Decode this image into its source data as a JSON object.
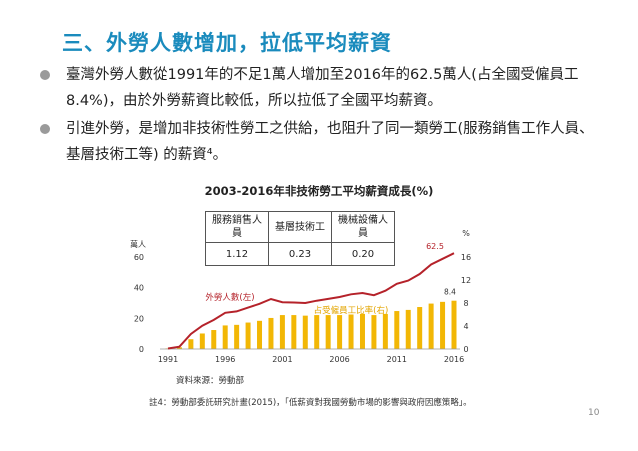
{
  "slide": {
    "title": "三、外勞人數增加，拉低平均薪資",
    "bullets": [
      "臺灣外勞人數從1991年的不足1萬人增加至2016年的62.5萬人(占全國受僱員工8.4%)，由於外勞薪資比較低，所以拉低了全國平均薪資。",
      "引進外勞，是增加非技術性勞工之供給，也阻升了同一類勞工(服務銷售工作人員、基層技術工等) 的薪資⁴。"
    ],
    "source": "資料來源：勞動部",
    "footnote": "註4：勞動部委託研究計畫(2015)，「低薪資對我國勞動市場的影響與政府因應策略」。",
    "page_number": "10"
  },
  "wage_table": {
    "headers": [
      "服務銷售人員",
      "基層技術工",
      "機械設備人員"
    ],
    "values": [
      "1.12",
      "0.23",
      "0.20"
    ]
  },
  "chart_data": {
    "type": "bar+line",
    "title": "2003-2016年非技術勞工平均薪資成長(%)",
    "x": [
      1991,
      1992,
      1993,
      1994,
      1995,
      1996,
      1997,
      1998,
      1999,
      2000,
      2001,
      2002,
      2003,
      2004,
      2005,
      2006,
      2007,
      2008,
      2009,
      2010,
      2011,
      2012,
      2013,
      2014,
      2015,
      2016
    ],
    "x_ticks": [
      "1991",
      "1996",
      "2001",
      "2006",
      "2011",
      "2016"
    ],
    "left_axis": {
      "label": "萬人",
      "ylim": [
        0,
        60
      ],
      "ticks": [
        "0",
        "20",
        "40",
        "60"
      ]
    },
    "right_axis": {
      "label": "%",
      "ylim": [
        0,
        16
      ],
      "ticks": [
        "0",
        "4",
        "8",
        "12",
        "16"
      ]
    },
    "series": [
      {
        "name": "外勞人數(左)",
        "type": "line",
        "axis": "left",
        "color": "#b5222a",
        "values": [
          0.3,
          1.5,
          9.8,
          15.2,
          19.0,
          23.6,
          24.5,
          27.0,
          29.5,
          32.6,
          30.5,
          30.3,
          30.0,
          31.5,
          32.7,
          33.9,
          35.7,
          36.5,
          35.1,
          38.0,
          42.5,
          44.6,
          48.9,
          55.1,
          58.8,
          62.5
        ],
        "end_label": "62.5"
      },
      {
        "name": "占受僱員工比率(右)",
        "type": "bar",
        "axis": "right",
        "color": "#f2b705",
        "values": [
          0.1,
          0.3,
          1.7,
          2.7,
          3.3,
          4.1,
          4.2,
          4.6,
          4.9,
          5.4,
          5.9,
          5.9,
          5.8,
          5.9,
          5.9,
          5.9,
          6.0,
          6.1,
          5.9,
          6.1,
          6.6,
          6.8,
          7.3,
          7.9,
          8.2,
          8.4
        ],
        "end_label": "8.4"
      }
    ]
  }
}
